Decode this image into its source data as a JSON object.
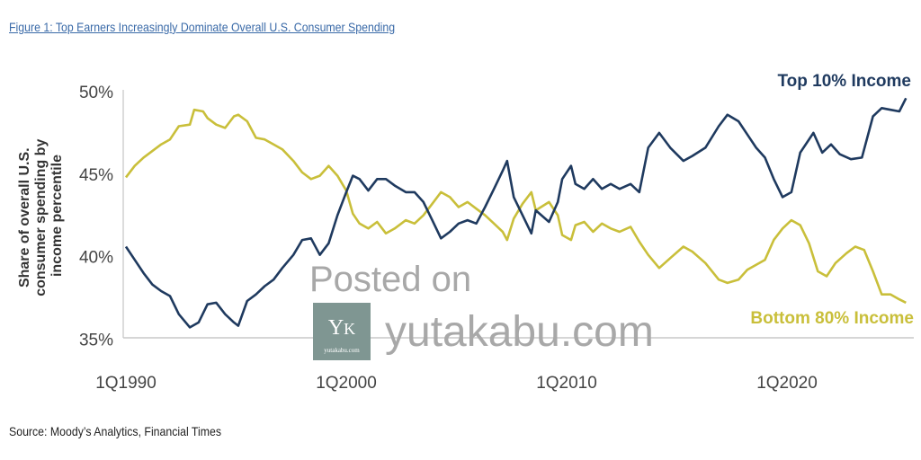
{
  "title": "Figure 1: Top Earners Increasingly Dominate Overall U.S. Consumer Spending",
  "source": "Source: Moody’s Analytics, Financial Times",
  "watermark": {
    "line1": "Posted on",
    "site": "yutakabu.com",
    "logo_letters": "YK",
    "logo_caption": "yutakabu.com"
  },
  "chart_data": {
    "type": "line",
    "title": "Figure 1: Top Earners Increasingly Dominate Overall U.S. Consumer Spending",
    "xlabel": "",
    "ylabel": "Share of overall U.S. consumer spending by income percentile",
    "ylabel_lines": [
      "Share of overall U.S.",
      "consumer spending by",
      "income percentile"
    ],
    "xlim": [
      1990,
      2025.4
    ],
    "ylim": [
      35,
      50
    ],
    "yticks": [
      50,
      45,
      40,
      35
    ],
    "ytick_labels": [
      "50%",
      "45%",
      "40%",
      "35%"
    ],
    "xticks": [
      1990,
      2000,
      2010,
      2020
    ],
    "xtick_labels": [
      "1Q1990",
      "1Q2000",
      "1Q2010",
      "1Q2020"
    ],
    "grid": false,
    "series": [
      {
        "name": "Top 10% Income",
        "color": "#1f3a5f",
        "x": [
          1990.0,
          1990.4,
          1990.8,
          1991.2,
          1991.6,
          1992.0,
          1992.4,
          1992.9,
          1993.3,
          1993.7,
          1994.1,
          1994.5,
          1994.9,
          1995.1,
          1995.5,
          1995.9,
          1996.3,
          1996.7,
          1997.1,
          1997.6,
          1998.0,
          1998.4,
          1998.8,
          1999.2,
          1999.6,
          2000.0,
          2000.3,
          2000.6,
          2001.0,
          2001.4,
          2001.8,
          2002.2,
          2002.7,
          2003.1,
          2003.5,
          2003.9,
          2004.3,
          2004.7,
          2005.1,
          2005.5,
          2005.9,
          2006.3,
          2006.7,
          2007.1,
          2007.3,
          2007.6,
          2008.0,
          2008.4,
          2008.6,
          2009.2,
          2009.6,
          2009.8,
          2010.2,
          2010.4,
          2010.8,
          2011.2,
          2011.6,
          2012.0,
          2012.4,
          2012.9,
          2013.3,
          2013.7,
          2014.2,
          2014.7,
          2015.3,
          2015.7,
          2016.3,
          2016.9,
          2017.3,
          2017.8,
          2018.2,
          2018.6,
          2019.0,
          2019.4,
          2019.8,
          2020.2,
          2020.6,
          2021.2,
          2021.6,
          2022.0,
          2022.4,
          2022.9,
          2023.4,
          2023.9,
          2024.3,
          2024.7,
          2025.1,
          2025.4
        ],
        "y": [
          40.6,
          39.8,
          39.0,
          38.3,
          37.9,
          37.6,
          36.5,
          35.7,
          36.0,
          37.1,
          37.2,
          36.5,
          36.0,
          35.8,
          37.3,
          37.7,
          38.2,
          38.6,
          39.3,
          40.1,
          41.0,
          41.1,
          40.1,
          40.8,
          42.5,
          43.9,
          44.9,
          44.7,
          44.0,
          44.7,
          44.7,
          44.3,
          43.9,
          43.9,
          43.3,
          42.2,
          41.1,
          41.5,
          42.0,
          42.2,
          42.0,
          43.0,
          44.1,
          45.2,
          45.8,
          43.6,
          42.5,
          41.4,
          42.8,
          42.1,
          43.3,
          44.7,
          45.5,
          44.4,
          44.1,
          44.7,
          44.1,
          44.4,
          44.1,
          44.4,
          43.9,
          46.6,
          47.5,
          46.6,
          45.8,
          46.1,
          46.6,
          47.9,
          48.6,
          48.2,
          47.4,
          46.6,
          46.0,
          44.7,
          43.6,
          43.9,
          46.3,
          47.5,
          46.3,
          46.8,
          46.2,
          45.9,
          46.0,
          48.5,
          49.0,
          48.9,
          48.8,
          49.6
        ]
      },
      {
        "name": "Bottom 80% Income",
        "color": "#c9bf3a",
        "x": [
          1990.0,
          1990.4,
          1990.8,
          1991.2,
          1991.6,
          1992.0,
          1992.4,
          1992.9,
          1993.1,
          1993.5,
          1993.7,
          1994.1,
          1994.5,
          1994.9,
          1995.1,
          1995.5,
          1995.9,
          1996.3,
          1996.7,
          1997.1,
          1997.6,
          1998.0,
          1998.4,
          1998.8,
          1999.2,
          1999.6,
          2000.0,
          2000.3,
          2000.6,
          2001.0,
          2001.4,
          2001.8,
          2002.2,
          2002.7,
          2003.1,
          2003.5,
          2003.9,
          2004.3,
          2004.7,
          2005.1,
          2005.5,
          2005.9,
          2006.3,
          2006.7,
          2007.1,
          2007.3,
          2007.6,
          2008.0,
          2008.4,
          2008.6,
          2009.2,
          2009.6,
          2009.8,
          2010.2,
          2010.4,
          2010.8,
          2011.2,
          2011.6,
          2012.0,
          2012.4,
          2012.9,
          2013.3,
          2013.7,
          2014.2,
          2014.7,
          2015.3,
          2015.7,
          2016.3,
          2016.9,
          2017.3,
          2017.8,
          2018.2,
          2018.6,
          2019.0,
          2019.4,
          2019.8,
          2020.2,
          2020.6,
          2021.0,
          2021.4,
          2021.8,
          2022.2,
          2022.7,
          2023.1,
          2023.5,
          2023.9,
          2024.3,
          2024.7,
          2025.1,
          2025.4
        ],
        "y": [
          44.8,
          45.5,
          46.0,
          46.4,
          46.8,
          47.1,
          47.9,
          48.0,
          48.9,
          48.8,
          48.4,
          48.0,
          47.8,
          48.5,
          48.6,
          48.2,
          47.2,
          47.1,
          46.8,
          46.5,
          45.8,
          45.1,
          44.7,
          44.9,
          45.5,
          44.9,
          44.0,
          42.6,
          42.0,
          41.7,
          42.1,
          41.4,
          41.7,
          42.2,
          42.0,
          42.5,
          43.2,
          43.9,
          43.6,
          43.0,
          43.3,
          42.9,
          42.5,
          42.0,
          41.5,
          41.0,
          42.3,
          43.2,
          43.9,
          42.8,
          43.3,
          42.5,
          41.3,
          41.0,
          41.9,
          42.1,
          41.5,
          42.0,
          41.7,
          41.5,
          41.8,
          40.9,
          40.1,
          39.3,
          39.9,
          40.6,
          40.3,
          39.6,
          38.6,
          38.4,
          38.6,
          39.2,
          39.5,
          39.8,
          41.0,
          41.7,
          42.2,
          41.9,
          40.8,
          39.1,
          38.8,
          39.6,
          40.2,
          40.6,
          40.4,
          39.1,
          37.7,
          37.7,
          37.4,
          37.2
        ]
      }
    ],
    "legend": [
      "Top 10% Income",
      "Bottom 80% Income"
    ],
    "legend_placement": "inline-right"
  }
}
